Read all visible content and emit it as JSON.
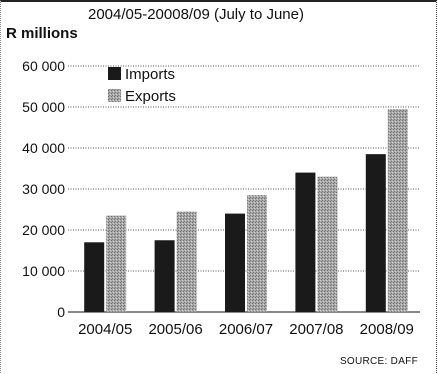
{
  "chart_data": {
    "type": "bar",
    "title": "2004/05-20008/09 (July to June)",
    "ylabel": "R millions",
    "categories": [
      "2004/05",
      "2005/06",
      "2006/07",
      "2007/08",
      "2008/09"
    ],
    "series": [
      {
        "name": "Imports",
        "values": [
          17000,
          17500,
          24000,
          34000,
          38500
        ],
        "color": "#1a1a1a"
      },
      {
        "name": "Exports",
        "values": [
          23500,
          24500,
          28500,
          33000,
          49500
        ],
        "color": "#a8a8a8"
      }
    ],
    "ylim": [
      0,
      60000
    ],
    "yticks": [
      0,
      10000,
      20000,
      30000,
      40000,
      50000,
      60000
    ],
    "ytick_labels": [
      "0",
      "10 000",
      "20 000",
      "30 000",
      "40 000",
      "50 000",
      "60 000"
    ],
    "grid": true,
    "legend_position": "top-left",
    "source": "SOURCE: DAFF"
  }
}
